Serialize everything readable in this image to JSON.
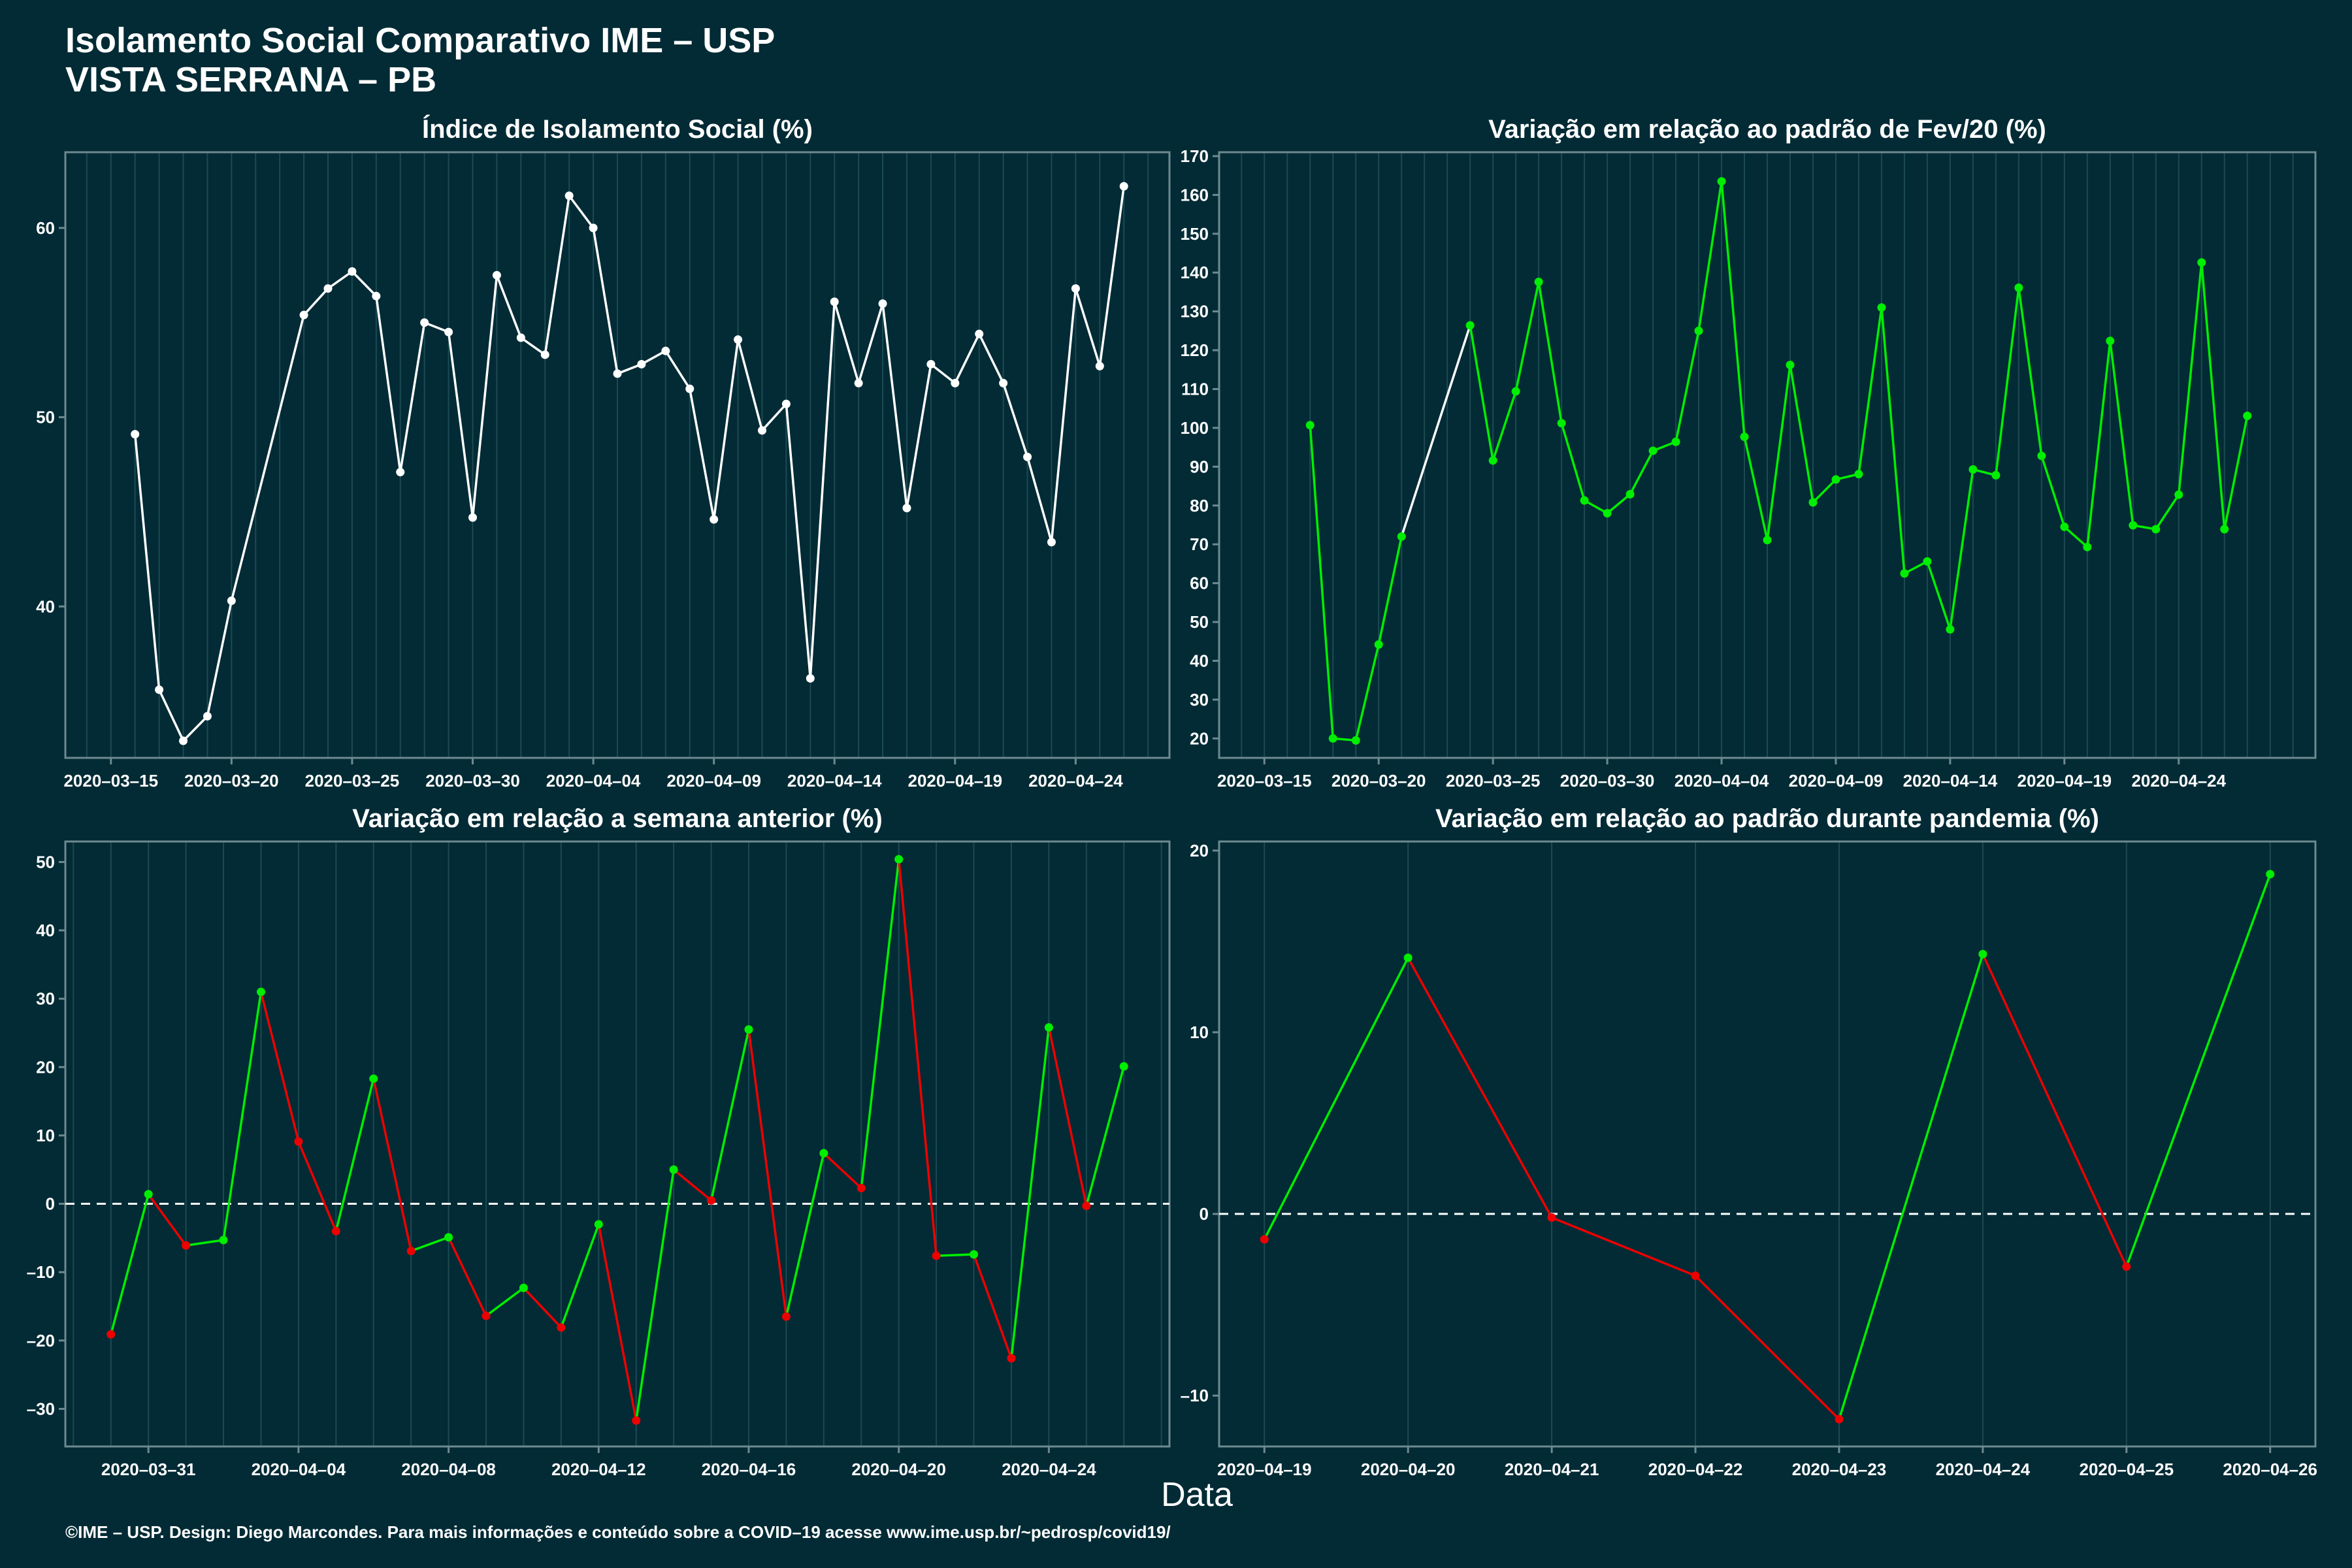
{
  "page": {
    "title_line1": "Isolamento Social Comparativo IME – USP",
    "title_line2": "VISTA SERRANA – PB",
    "xlabel": "Data",
    "footer": "©IME – USP. Design: Diego Marcondes. Para mais informações e conteúdo sobre a COVID–19 acesse www.ime.usp.br/~pedrosp/covid19/"
  },
  "colors": {
    "background": "#022b35",
    "white": "#ffffff",
    "green": "#00ee00",
    "red": "#ee0000",
    "grid": "#1d4a52",
    "axis": "#6e8a90"
  },
  "chart_data": [
    {
      "type": "line",
      "title": "Índice de Isolamento Social (%)",
      "color_mode": "white",
      "x_ticks": [
        "2020-03-15",
        "2020-03-20",
        "2020-03-25",
        "2020-03-30",
        "2020-04-04",
        "2020-04-09",
        "2020-04-14",
        "2020-04-19",
        "2020-04-24"
      ],
      "y_ticks": [
        40,
        50,
        60
      ],
      "ylim": [
        32,
        64
      ],
      "x": [
        "2020-03-16",
        "2020-03-17",
        "2020-03-18",
        "2020-03-19",
        "2020-03-20",
        "2020-03-23",
        "2020-03-24",
        "2020-03-25",
        "2020-03-26",
        "2020-03-27",
        "2020-03-28",
        "2020-03-29",
        "2020-03-30",
        "2020-03-31",
        "2020-04-01",
        "2020-04-02",
        "2020-04-03",
        "2020-04-04",
        "2020-04-05",
        "2020-04-06",
        "2020-04-07",
        "2020-04-08",
        "2020-04-09",
        "2020-04-10",
        "2020-04-11",
        "2020-04-12",
        "2020-04-13",
        "2020-04-14",
        "2020-04-15",
        "2020-04-16",
        "2020-04-17",
        "2020-04-18",
        "2020-04-19",
        "2020-04-20",
        "2020-04-21",
        "2020-04-22",
        "2020-04-23",
        "2020-04-24",
        "2020-04-25",
        "2020-04-26"
      ],
      "values": [
        49.1,
        35.6,
        32.9,
        34.2,
        40.3,
        55.4,
        56.8,
        57.7,
        56.4,
        47.1,
        55.0,
        54.5,
        44.7,
        57.5,
        54.2,
        53.3,
        61.7,
        60.0,
        52.3,
        52.8,
        53.5,
        51.5,
        44.6,
        54.1,
        49.3,
        50.7,
        36.2,
        56.1,
        51.8,
        56.0,
        45.2,
        52.8,
        51.8,
        54.4,
        51.8,
        47.9,
        43.4,
        56.8,
        52.7,
        62.2
      ]
    },
    {
      "type": "line",
      "title": "Variação em relação ao padrão de Fev/20 (%)",
      "color_mode": "green",
      "x_ticks": [
        "2020-03-15",
        "2020-03-20",
        "2020-03-25",
        "2020-03-30",
        "2020-04-04",
        "2020-04-09",
        "2020-04-14",
        "2020-04-19",
        "2020-04-24"
      ],
      "y_ticks": [
        20,
        30,
        40,
        50,
        60,
        70,
        80,
        90,
        100,
        110,
        120,
        130,
        140,
        150,
        160,
        170
      ],
      "ylim": [
        15,
        171
      ],
      "white_segments": [
        [
          5,
          6
        ]
      ],
      "x": [
        "2020-03-17",
        "2020-03-18",
        "2020-03-19",
        "2020-03-20",
        "2020-03-21",
        "2020-03-22",
        "2020-03-24",
        "2020-03-25",
        "2020-03-26",
        "2020-03-27",
        "2020-03-28",
        "2020-03-29",
        "2020-03-30",
        "2020-03-31",
        "2020-04-01",
        "2020-04-02",
        "2020-04-03",
        "2020-04-04",
        "2020-04-05",
        "2020-04-06",
        "2020-04-07",
        "2020-04-08",
        "2020-04-09",
        "2020-04-10",
        "2020-04-11",
        "2020-04-12",
        "2020-04-13",
        "2020-04-14",
        "2020-04-15",
        "2020-04-16",
        "2020-04-17",
        "2020-04-18",
        "2020-04-19",
        "2020-04-20",
        "2020-04-21",
        "2020-04-22",
        "2020-04-23",
        "2020-04-24",
        "2020-04-25",
        "2020-04-26",
        "2020-04-27",
        "2020-04-28"
      ],
      "values": [
        100.7,
        20.0,
        19.5,
        44.2,
        72.0,
        null,
        126.4,
        91.6,
        109.4,
        137.6,
        101.2,
        81.3,
        78.0,
        82.9,
        94.1,
        96.4,
        125.0,
        163.5,
        97.7,
        71.1,
        116.2,
        80.8,
        86.7,
        88.1,
        131.0,
        62.5,
        65.6,
        48.1,
        89.3,
        87.8,
        136.1,
        92.8,
        74.5,
        69.3,
        122.4,
        74.9,
        73.9,
        82.8,
        142.6,
        73.9,
        103.1,
        null
      ]
    },
    {
      "type": "line",
      "title": "Variação em relação a semana anterior (%)",
      "color_mode": "updown",
      "x_ticks": [
        "2020-03-31",
        "2020-04-04",
        "2020-04-08",
        "2020-04-12",
        "2020-04-16",
        "2020-04-20",
        "2020-04-24"
      ],
      "y_ticks": [
        -30,
        -20,
        -10,
        0,
        10,
        20,
        30,
        40,
        50
      ],
      "ylim": [
        -35.5,
        53
      ],
      "zero_line": true,
      "x": [
        "2020-03-30",
        "2020-03-31",
        "2020-04-01",
        "2020-04-02",
        "2020-04-03",
        "2020-04-04",
        "2020-04-05",
        "2020-04-06",
        "2020-04-07",
        "2020-04-08",
        "2020-04-09",
        "2020-04-10",
        "2020-04-11",
        "2020-04-12",
        "2020-04-13",
        "2020-04-14",
        "2020-04-15",
        "2020-04-16",
        "2020-04-17",
        "2020-04-18",
        "2020-04-19",
        "2020-04-20",
        "2020-04-21",
        "2020-04-22",
        "2020-04-23",
        "2020-04-24",
        "2020-04-25",
        "2020-04-26"
      ],
      "values": [
        -19.1,
        1.4,
        -6.1,
        -5.3,
        31.0,
        9.1,
        -4.0,
        18.3,
        -6.9,
        -4.9,
        -16.4,
        -12.3,
        -18.1,
        -3.0,
        -31.7,
        5.0,
        0.5,
        25.5,
        -16.5,
        7.4,
        2.3,
        50.4,
        -7.6,
        -7.4,
        -22.6,
        25.8,
        -0.3,
        20.1
      ]
    },
    {
      "type": "line",
      "title": "Variação em relação ao padrão durante pandemia (%)",
      "color_mode": "updown",
      "x_ticks": [
        "2020-04-19",
        "2020-04-20",
        "2020-04-21",
        "2020-04-22",
        "2020-04-23",
        "2020-04-24",
        "2020-04-25",
        "2020-04-26"
      ],
      "y_ticks": [
        -10,
        0,
        10,
        20
      ],
      "ylim": [
        -12.8,
        20.5
      ],
      "zero_line": true,
      "x": [
        "2020-04-19",
        "2020-04-20",
        "2020-04-21",
        "2020-04-22",
        "2020-04-23",
        "2020-04-24",
        "2020-04-25",
        "2020-04-26"
      ],
      "values": [
        -1.4,
        14.1,
        -0.2,
        -3.4,
        -11.3,
        14.3,
        -2.9,
        18.7
      ]
    }
  ]
}
